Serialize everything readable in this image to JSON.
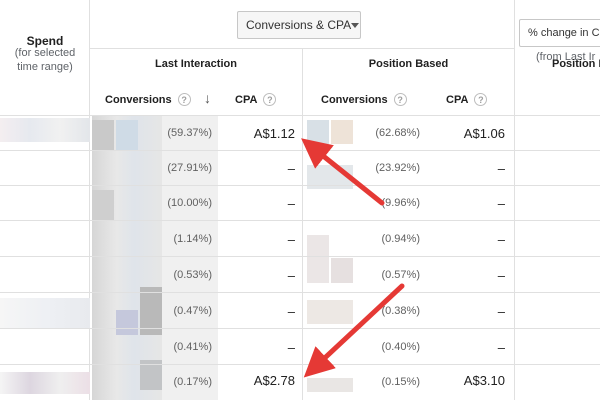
{
  "spend": {
    "title": "Spend",
    "subtitle_line1": "(for selected",
    "subtitle_line2": "time range)"
  },
  "dropdown": {
    "label": "Conversions & CPA"
  },
  "change_column": {
    "input_value": "% change in Co",
    "subtitle": "(from Last Ir"
  },
  "models": {
    "last_interaction": "Last Interaction",
    "position_based": "Position Based",
    "position_partial": "Position B"
  },
  "columns": {
    "conversions": "Conversions",
    "cpa": "CPA",
    "help_glyph": "?",
    "sort_glyph": "↓"
  },
  "rows": [
    {
      "li_pct": "(59.37%)",
      "li_cpa": "A$1.12",
      "pb_pct": "(62.68%)",
      "pb_cpa": "A$1.06"
    },
    {
      "li_pct": "(27.91%)",
      "li_cpa": "–",
      "pb_pct": "(23.92%)",
      "pb_cpa": "–"
    },
    {
      "li_pct": "(10.00%)",
      "li_cpa": "–",
      "pb_pct": "(9.96%)",
      "pb_cpa": "–"
    },
    {
      "li_pct": "(1.14%)",
      "li_cpa": "–",
      "pb_pct": "(0.94%)",
      "pb_cpa": "–"
    },
    {
      "li_pct": "(0.53%)",
      "li_cpa": "–",
      "pb_pct": "(0.57%)",
      "pb_cpa": "–"
    },
    {
      "li_pct": "(0.47%)",
      "li_cpa": "–",
      "pb_pct": "(0.38%)",
      "pb_cpa": "–"
    },
    {
      "li_pct": "(0.41%)",
      "li_cpa": "–",
      "pb_pct": "(0.40%)",
      "pb_cpa": "–"
    },
    {
      "li_pct": "(0.17%)",
      "li_cpa": "A$2.78",
      "pb_pct": "(0.15%)",
      "pb_cpa": "A$3.10"
    }
  ],
  "colors": {
    "arrow": "#e53935",
    "grid": "#e0e0e0",
    "muted_text": "#616161"
  }
}
